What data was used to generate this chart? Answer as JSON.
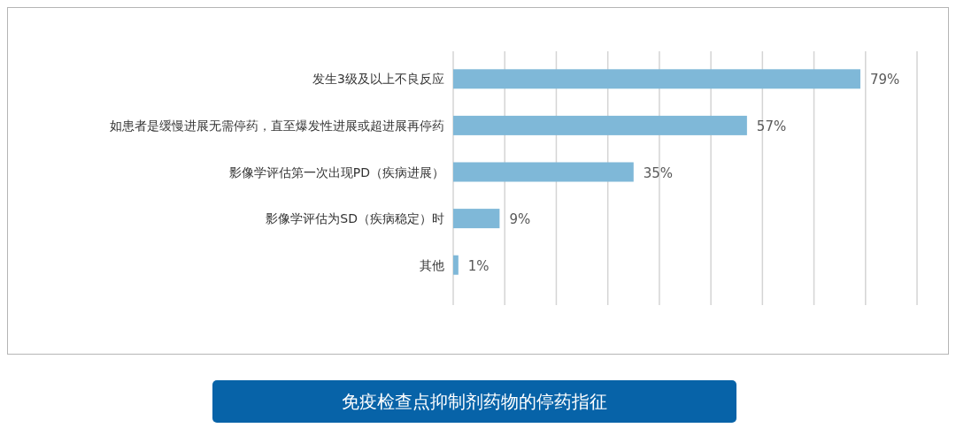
{
  "chart_data": {
    "type": "bar",
    "orientation": "horizontal",
    "title": "免疫检查点抑制剂药物的停药指征",
    "categories": [
      "发生3级及以上不良反应",
      "如患者是缓慢进展无需停药，直至爆发性进展或超进展再停药",
      "影像学评估第一次出现PD（疾病进展）",
      "影像学评估为SD（疾病稳定）时",
      "其他"
    ],
    "values": [
      79,
      57,
      35,
      9,
      1
    ],
    "value_labels": [
      "79%",
      "57%",
      "35%",
      "9%",
      "1%"
    ],
    "color": "#7fb8d8",
    "xlim": [
      0,
      90
    ],
    "xticks": [
      {
        "value": 0,
        "label": null
      },
      {
        "value": 10,
        "label": null
      },
      {
        "value": 20,
        "label": null
      },
      {
        "value": 30,
        "label": null
      },
      {
        "value": 40,
        "label": null
      },
      {
        "value": 50,
        "label": null
      },
      {
        "value": 60,
        "label": null
      },
      {
        "value": 70,
        "label": null
      },
      {
        "value": 80,
        "label": null
      },
      {
        "value": 90,
        "label": null
      }
    ],
    "grid": "x"
  }
}
